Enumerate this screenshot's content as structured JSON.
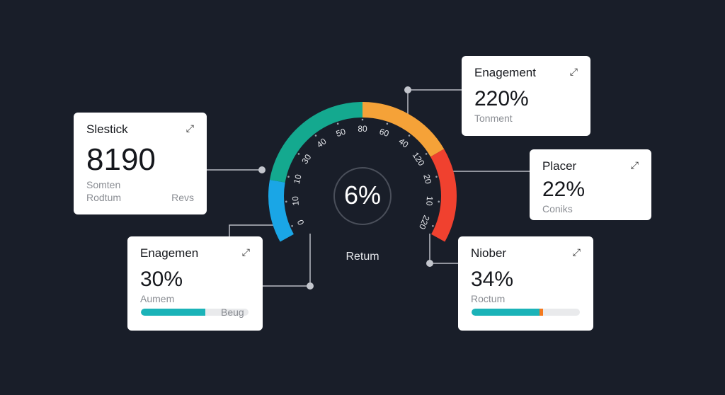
{
  "gauge": {
    "value_label": "6%",
    "caption": "Retum",
    "tick_labels": [
      "0",
      "10",
      "10",
      "30",
      "40",
      "50",
      "80",
      "60",
      "40",
      "120",
      "20",
      "10",
      "220"
    ],
    "segment_colors": [
      "#1aa6e6",
      "#14a98f",
      "#f5a238",
      "#f0412f"
    ]
  },
  "cards": [
    {
      "title": "Slestick",
      "value": "8190",
      "sub1": "Somten",
      "sub2": "Rodtum",
      "sub_right": "Revs",
      "icon": "expand-icon"
    },
    {
      "title": "Enagemen",
      "value": "30%",
      "sub": "Aumem",
      "bar_label": "Beug",
      "progress": 0.6,
      "icon": "expand-icon"
    },
    {
      "title": "Enagement",
      "value": "220%",
      "sub": "Tonment",
      "icon": "expand-icon"
    },
    {
      "title": "Placer",
      "value": "22%",
      "sub": "Coniks",
      "icon": "expand-icon"
    },
    {
      "title": "Niober",
      "value": "34%",
      "sub": "Roctum",
      "progress": 0.66,
      "icon": "expand-icon"
    }
  ]
}
